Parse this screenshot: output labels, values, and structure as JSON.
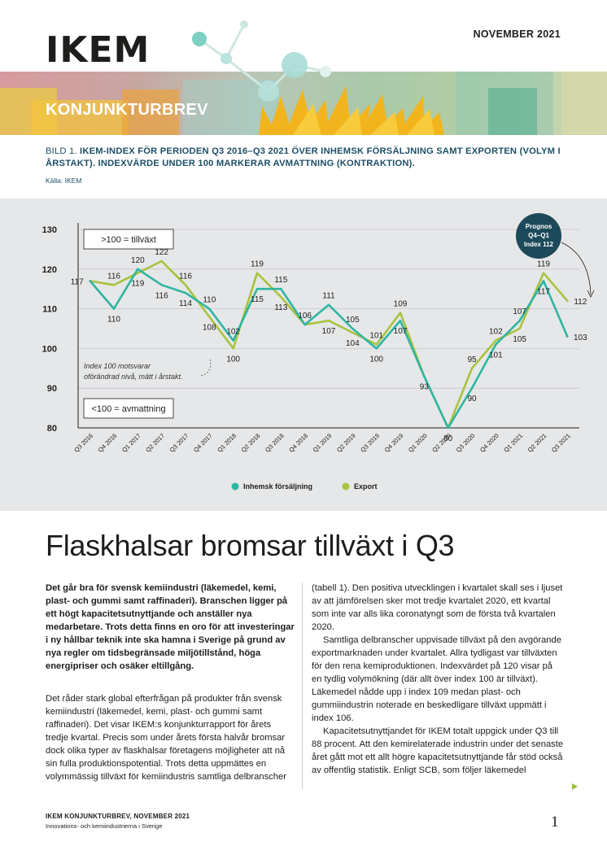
{
  "header": {
    "logo": "IKEM",
    "date": "NOVEMBER 2021",
    "banner_title": "KONJUNKTURBREV"
  },
  "figure": {
    "label": "BILD 1.",
    "title": "IKEM-INDEX FÖR PERIODEN Q3 2016–Q3 2021 ÖVER INHEMSK FÖRSÄLJNING SAMT EXPORTEN (VOLYM I ÅRSTAKT). INDEXVÄRDE UNDER 100 MARKERAR AVMATTNING (KONTRAKTION).",
    "source": "Källa: IKEM"
  },
  "colors": {
    "domestic": "#2fb5a2",
    "export": "#a9c23f",
    "panel": "#e6e7e8",
    "badge": "#1d4a5a",
    "caption": "#1d4f66"
  },
  "chart_data": {
    "type": "line",
    "categories": [
      "Q3 2016",
      "Q4 2016",
      "Q1 2017",
      "Q2 2017",
      "Q3 2017",
      "Q4 2017",
      "Q1 2018",
      "Q2 2018",
      "Q3 2018",
      "Q4 2018",
      "Q1 2019",
      "Q2 2019",
      "Q3 2019",
      "Q4 2019",
      "Q1 2020",
      "Q2 2020",
      "Q3 2020",
      "Q4 2020",
      "Q1 2021",
      "Q2 2021",
      "Q3 2021"
    ],
    "series": [
      {
        "name": "Inhemsk försäljning",
        "values": [
          117,
          110,
          120,
          116,
          114,
          110,
          102,
          115,
          115,
          106,
          111,
          105,
          100,
          107,
          93,
          80,
          90,
          101,
          107,
          117,
          103
        ]
      },
      {
        "name": "Export",
        "values": [
          117,
          116,
          119,
          122,
          116,
          108,
          100,
          119,
          113,
          106,
          107,
          104,
          101,
          109,
          93,
          80,
          95,
          102,
          105,
          119,
          112
        ]
      }
    ],
    "ylim": [
      80,
      130
    ],
    "yticks": [
      80,
      90,
      100,
      110,
      120,
      130
    ],
    "grid": true,
    "legend_position": "bottom",
    "annotations": {
      "growth_box": ">100 = tillväxt",
      "slowdown_box": "<100 = avmattning",
      "index_note_line1": "Index 100 motsvarar",
      "index_note_line2": "oförändrad nivå, mätt i årstakt.",
      "forecast_line1": "Prognos",
      "forecast_line2": "Q4–Q1",
      "forecast_line3": "Index 112"
    }
  },
  "article": {
    "headline": "Flaskhalsar bromsar tillväxt i Q3",
    "lead": "Det går bra för svensk kemiindustri (läkemedel, kemi, plast- och gummi samt raffinaderi). Branschen ligger på ett högt kapacitetsutnyttjande och anställer nya medarbetare. Trots detta finns en oro för att investeringar i ny hållbar teknik inte ska hamna i Sverige på grund av nya regler om tidsbegränsade miljötillstånd, höga energipriser och osäker eltillgång.",
    "left_body": "Det råder stark global efterfrågan på produkter från svensk kemiindustri (läkemedel, kemi, plast- och gummi samt raffinaderi). Det visar IKEM:s konjunkturrapport för årets tredje kvartal. Precis som under årets första halvår bromsar dock olika typer av flaskhalsar företagens möjligheter att nå sin fulla produktionspotential. Trots detta uppmättes en volymmässig tillväxt för kemiindustris samtliga delbranscher",
    "right_p1": "(tabell 1). Den positiva utvecklingen i kvartalet skall ses i ljuset av att jämförelsen sker mot tredje kvartalet 2020, ett kvartal som inte var alls lika coronatyngt som de första två kvartalen 2020.",
    "right_p2": "Samtliga delbranscher uppvisade tillväxt på den avgörande exportmarknaden under kvartalet. Allra tydligast var tillväxten för den rena kemiproduktionen. Indexvärdet på 120 visar på en tydlig volymökning (där allt över index 100 är tillväxt). Läkemedel nådde upp i index 109 medan plast- och gummiindustrin noterade en beskedligare tillväxt uppmätt i index 106.",
    "right_p3": "Kapacitetsutnyttjandet för IKEM totalt uppgick under Q3 till 88 procent. Att den kemirelaterade industrin under det senaste året gått mot ett allt högre kapacitetsutnyttjande får stöd också av offentlig statistik. Enligt SCB, som följer läkemedel"
  },
  "footer": {
    "title": "IKEM KONJUNKTURBREV, NOVEMBER 2021",
    "subtitle": "Innovations- och kemiindustrierna i Sverige",
    "page_number": "1"
  }
}
